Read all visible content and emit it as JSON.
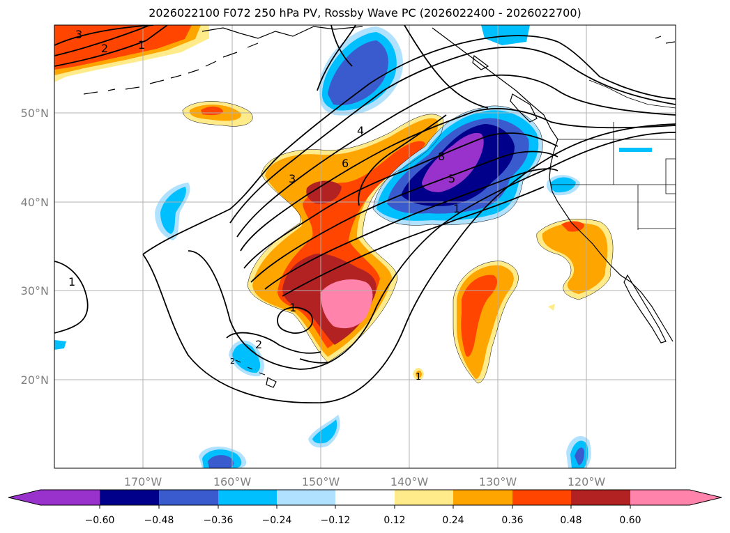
{
  "title": "2026022100 F072 250 hPa PV, Rossby Wave PC (2026022400 - 2026022700)",
  "map": {
    "lon_labels": [
      "170°W",
      "160°W",
      "150°W",
      "140°W",
      "130°W",
      "120°W"
    ],
    "lat_labels": [
      "50°N",
      "40°N",
      "30°N",
      "20°N"
    ],
    "contour_labels": [
      "3",
      "2",
      "1",
      "4",
      "6",
      "8",
      "5",
      "3",
      "1",
      "1",
      "2",
      "1",
      "1",
      "2"
    ],
    "colors": {
      "land_outline": "#000000",
      "grid": "#b0b0b0",
      "tick_label": "#808080"
    }
  },
  "colorbar": {
    "ticks": [
      "−0.60",
      "−0.48",
      "−0.36",
      "−0.24",
      "−0.12",
      "0.12",
      "0.24",
      "0.36",
      "0.48",
      "0.60"
    ],
    "colors": [
      "#9932cc",
      "#00008b",
      "#3a5bcd",
      "#00bfff",
      "#b0e2ff",
      "#ffffff",
      "#ffeb8a",
      "#ffa500",
      "#ff4500",
      "#b22222",
      "#ff83aa"
    ]
  }
}
